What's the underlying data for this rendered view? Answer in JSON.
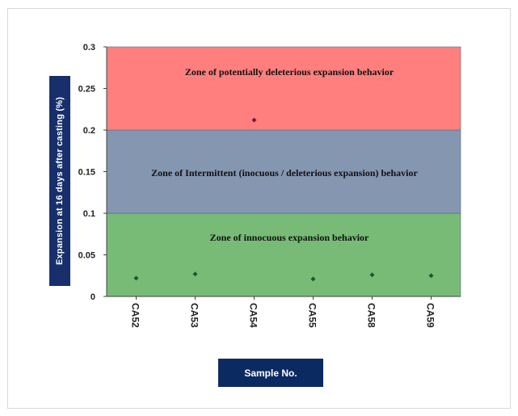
{
  "chart_data": {
    "type": "scatter",
    "title": "",
    "xlabel": "Sample No.",
    "ylabel": "Expansion  at 16 days after  casting  (%)",
    "categories": [
      "CA52",
      "CA53",
      "CA54",
      "CA55",
      "CA58",
      "CA59"
    ],
    "series": [
      {
        "values": [
          0.022,
          0.027,
          0.212,
          0.021,
          0.026,
          0.025
        ]
      }
    ],
    "ylim": [
      0,
      0.3
    ],
    "yticks": [
      "0",
      "0.05",
      "0.1",
      "0.15",
      "0.2",
      "0.25",
      "0.3"
    ],
    "ytick_values": [
      0,
      0.05,
      0.1,
      0.15,
      0.2,
      0.25,
      0.3
    ],
    "zones": [
      {
        "label": "Zone of innocuous expansion behavior",
        "from": 0,
        "to": 0.1,
        "color": "#77bb77"
      },
      {
        "label": "Zone of Intermittent  (inocuous / deleterious  expansion) behavior",
        "from": 0.1,
        "to": 0.2,
        "color": "#8496b0"
      },
      {
        "label": "Zone of potentially deleterious  expansion behavior",
        "from": 0.2,
        "to": 0.3,
        "color": "#ff7f7f"
      }
    ],
    "point_color_default": "#1e5631",
    "point_color_high": "#7b1a2e",
    "grid": false,
    "legend": "none"
  }
}
